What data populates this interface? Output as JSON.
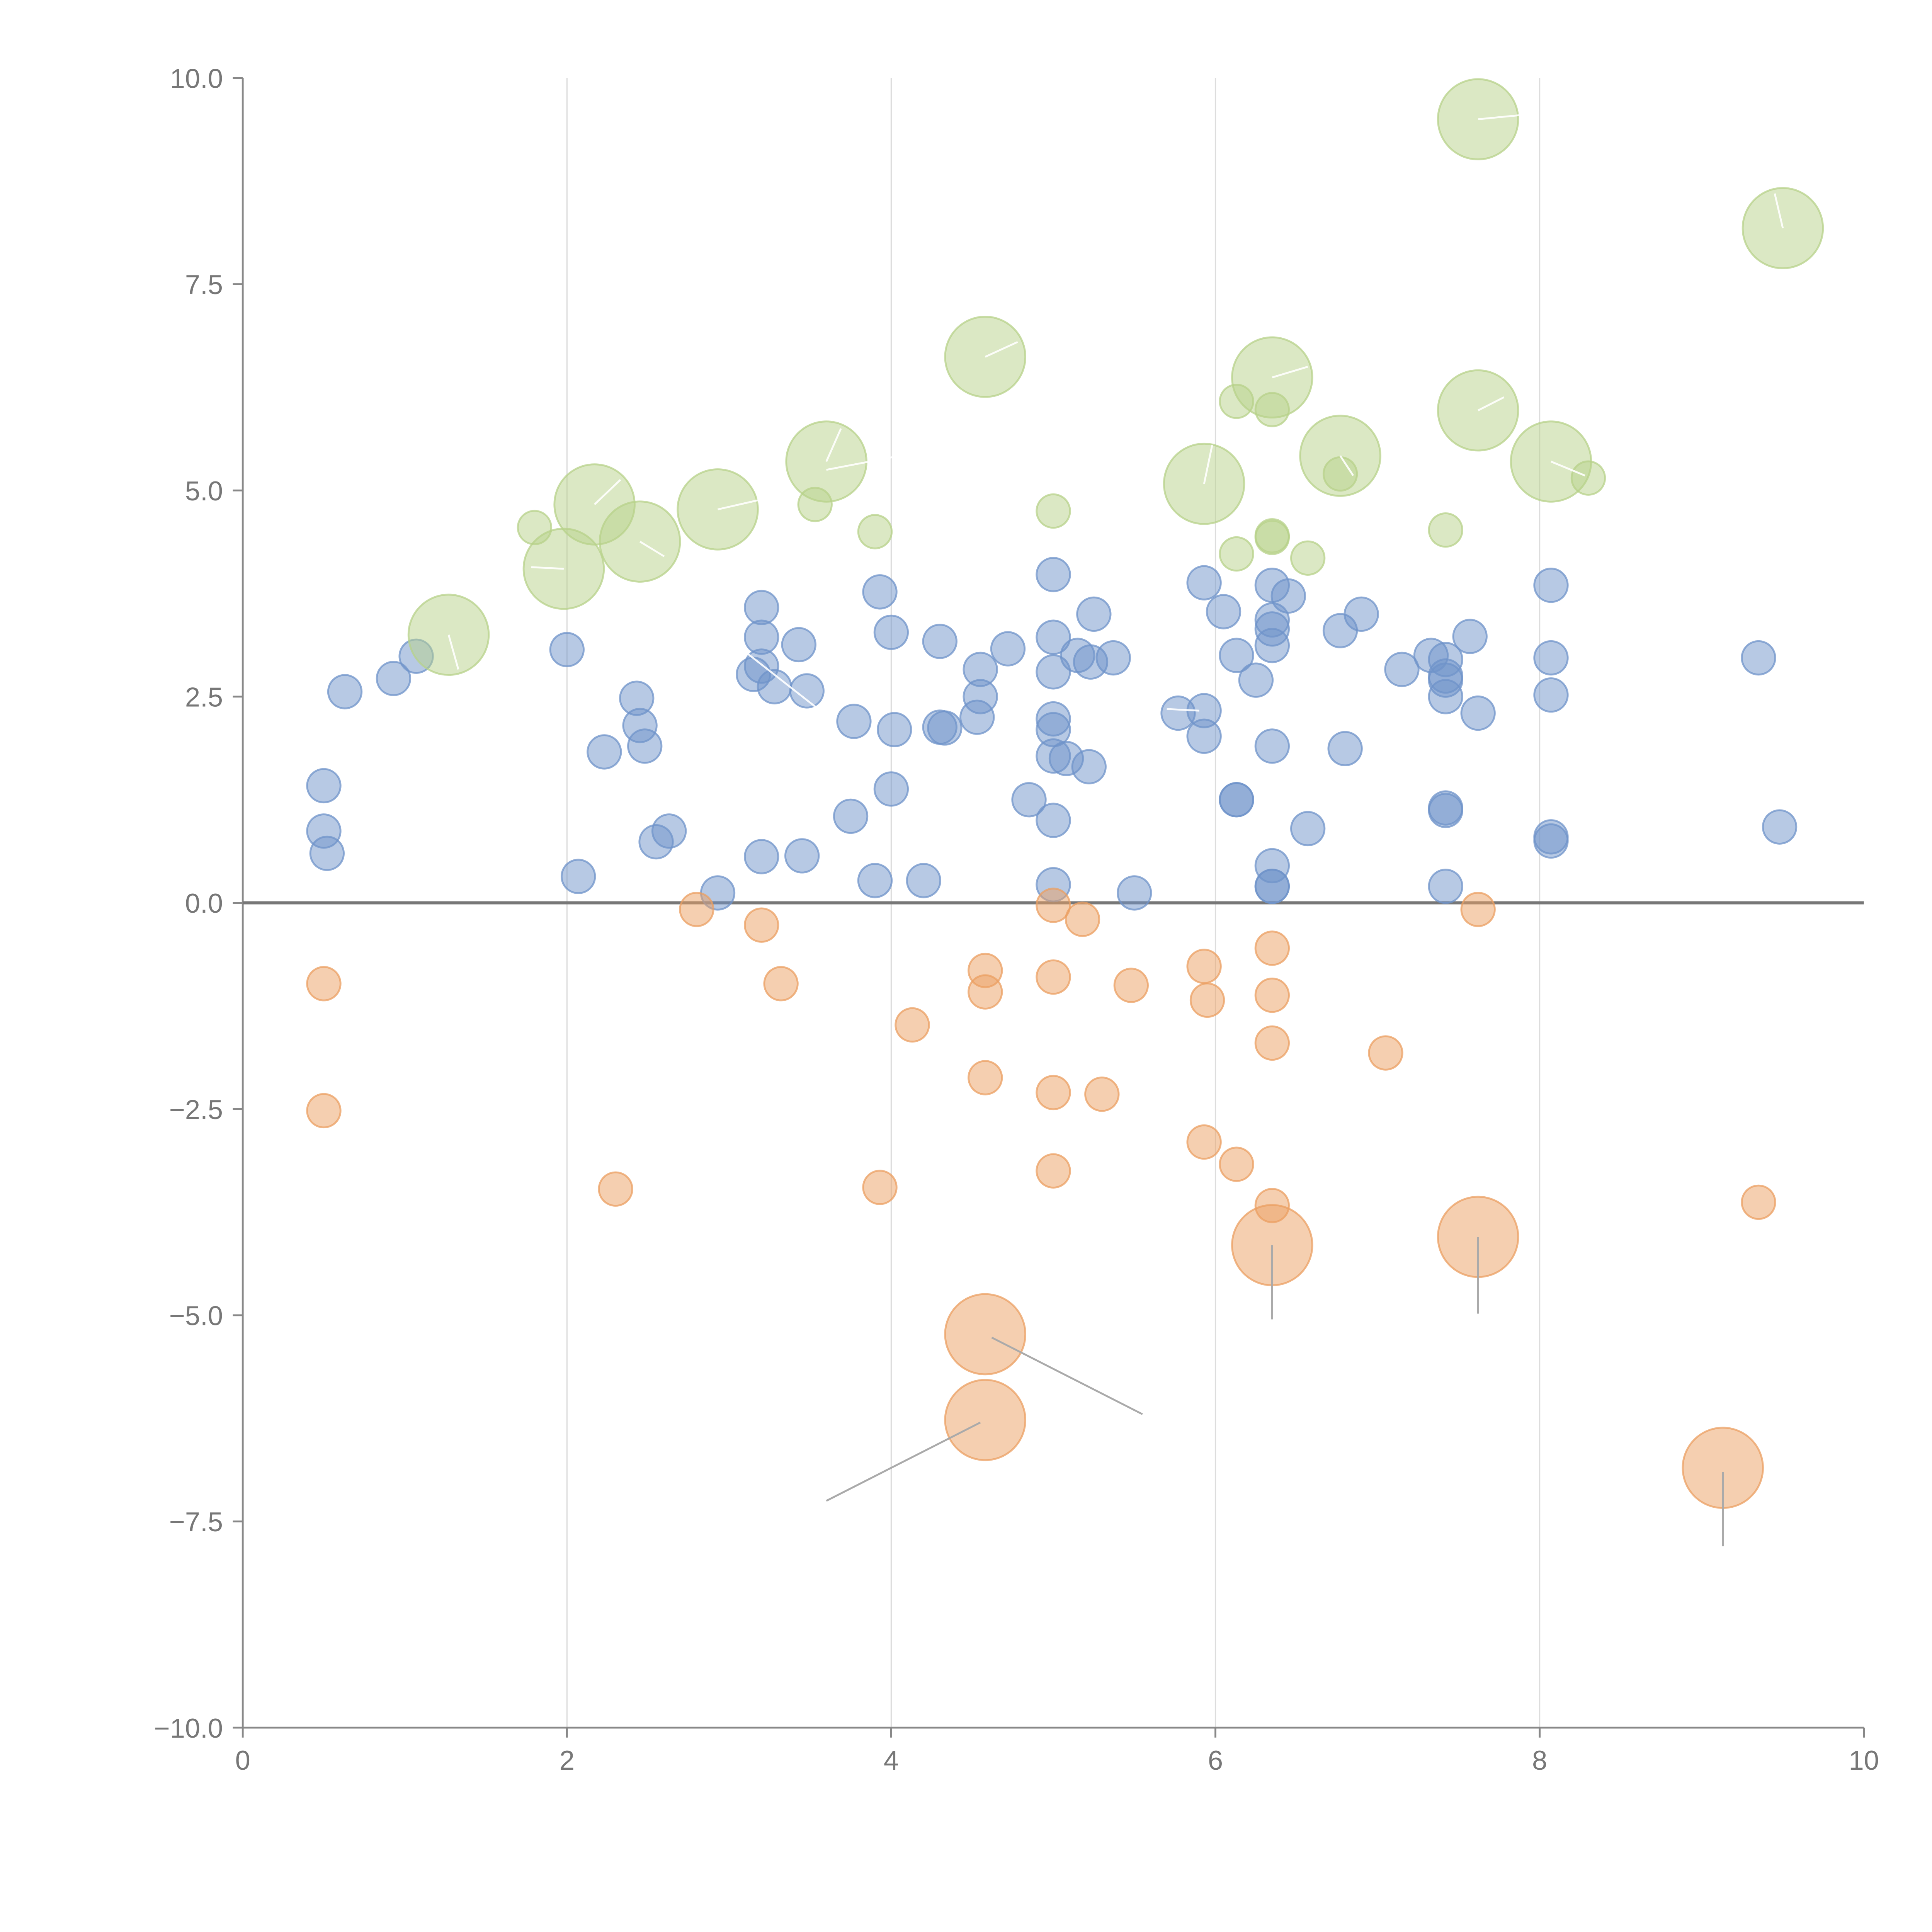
{
  "chart_data": {
    "type": "scatter",
    "title": "",
    "xlabel": "",
    "ylabel": "",
    "xlim": [
      0,
      10
    ],
    "ylim": [
      -10,
      10
    ],
    "x_ticks": [
      0,
      2,
      4,
      6,
      8,
      10
    ],
    "x_tick_labels": [
      "0",
      "2",
      "4",
      "6",
      "8",
      "10"
    ],
    "y_ticks": [
      -10,
      -7.5,
      -5,
      -2.5,
      0,
      2.5,
      5,
      7.5,
      10
    ],
    "y_tick_labels": [
      "−10.0",
      "−7.5",
      "−5.0",
      "−2.5",
      "0.0",
      "2.5",
      "5.0",
      "7.5",
      "10.0"
    ],
    "vertical_gridlines": [
      2,
      4,
      6,
      8
    ],
    "zero_line": 0,
    "series": [
      {
        "name": "blue",
        "color": "#6f93c9",
        "points": [
          {
            "x": 0.5,
            "y": 1.42,
            "s": 1
          },
          {
            "x": 0.5,
            "y": 0.87,
            "s": 1
          },
          {
            "x": 0.52,
            "y": 0.6,
            "s": 1
          },
          {
            "x": 0.63,
            "y": 2.56,
            "s": 1
          },
          {
            "x": 0.93,
            "y": 2.72,
            "s": 1
          },
          {
            "x": 1.07,
            "y": 2.99,
            "s": 1
          },
          {
            "x": 2.0,
            "y": 3.07,
            "s": 1
          },
          {
            "x": 2.07,
            "y": 0.32,
            "s": 1
          },
          {
            "x": 2.23,
            "y": 1.83,
            "s": 1
          },
          {
            "x": 2.43,
            "y": 2.48,
            "s": 1
          },
          {
            "x": 2.45,
            "y": 2.15,
            "s": 1
          },
          {
            "x": 2.48,
            "y": 1.9,
            "s": 1
          },
          {
            "x": 2.55,
            "y": 0.74,
            "s": 1
          },
          {
            "x": 2.63,
            "y": 0.87,
            "s": 1
          },
          {
            "x": 2.93,
            "y": 0.12,
            "s": 1
          },
          {
            "x": 3.15,
            "y": 2.77,
            "s": 1
          },
          {
            "x": 3.2,
            "y": 3.58,
            "s": 1
          },
          {
            "x": 3.2,
            "y": 3.22,
            "s": 1
          },
          {
            "x": 3.2,
            "y": 2.87,
            "s": 1
          },
          {
            "x": 3.2,
            "y": 0.56,
            "s": 1
          },
          {
            "x": 3.28,
            "y": 2.62,
            "s": 1
          },
          {
            "x": 3.43,
            "y": 3.13,
            "s": 1
          },
          {
            "x": 3.45,
            "y": 0.57,
            "s": 1
          },
          {
            "x": 3.48,
            "y": 2.57,
            "s": 1
          },
          {
            "x": 3.75,
            "y": 1.05,
            "s": 1
          },
          {
            "x": 3.77,
            "y": 2.2,
            "s": 1
          },
          {
            "x": 3.9,
            "y": 0.27,
            "s": 1
          },
          {
            "x": 3.93,
            "y": 3.77,
            "s": 1
          },
          {
            "x": 4.0,
            "y": 3.28,
            "s": 1
          },
          {
            "x": 4.0,
            "y": 1.38,
            "s": 1
          },
          {
            "x": 4.02,
            "y": 2.1,
            "s": 1
          },
          {
            "x": 4.2,
            "y": 0.27,
            "s": 1
          },
          {
            "x": 4.3,
            "y": 3.17,
            "s": 1
          },
          {
            "x": 4.3,
            "y": 2.13,
            "s": 1
          },
          {
            "x": 4.33,
            "y": 2.12,
            "s": 1
          },
          {
            "x": 4.55,
            "y": 2.83,
            "s": 1
          },
          {
            "x": 4.55,
            "y": 2.5,
            "s": 1
          },
          {
            "x": 4.53,
            "y": 2.25,
            "s": 1
          },
          {
            "x": 4.72,
            "y": 3.08,
            "s": 1
          },
          {
            "x": 4.85,
            "y": 1.25,
            "s": 1
          },
          {
            "x": 5.0,
            "y": 3.98,
            "s": 1
          },
          {
            "x": 5.0,
            "y": 3.22,
            "s": 1
          },
          {
            "x": 5.0,
            "y": 2.8,
            "s": 1
          },
          {
            "x": 5.0,
            "y": 2.23,
            "s": 1
          },
          {
            "x": 5.0,
            "y": 2.1,
            "s": 1
          },
          {
            "x": 5.0,
            "y": 1.78,
            "s": 1
          },
          {
            "x": 5.0,
            "y": 1.0,
            "s": 1
          },
          {
            "x": 5.0,
            "y": 0.22,
            "s": 1
          },
          {
            "x": 5.08,
            "y": 1.75,
            "s": 1
          },
          {
            "x": 5.15,
            "y": 3.0,
            "s": 1
          },
          {
            "x": 5.22,
            "y": 1.65,
            "s": 1
          },
          {
            "x": 5.23,
            "y": 2.92,
            "s": 1
          },
          {
            "x": 5.25,
            "y": 3.5,
            "s": 1
          },
          {
            "x": 5.37,
            "y": 2.97,
            "s": 1
          },
          {
            "x": 5.5,
            "y": 0.12,
            "s": 1
          },
          {
            "x": 5.77,
            "y": 2.3,
            "s": 1
          },
          {
            "x": 5.93,
            "y": 3.88,
            "s": 1
          },
          {
            "x": 5.93,
            "y": 2.33,
            "s": 1
          },
          {
            "x": 5.93,
            "y": 2.02,
            "s": 1
          },
          {
            "x": 6.05,
            "y": 3.53,
            "s": 1
          },
          {
            "x": 6.13,
            "y": 3.0,
            "s": 1
          },
          {
            "x": 6.13,
            "y": 1.25,
            "s": 1
          },
          {
            "x": 6.13,
            "y": 1.25,
            "s": 1
          },
          {
            "x": 6.25,
            "y": 2.7,
            "s": 1
          },
          {
            "x": 6.35,
            "y": 3.85,
            "s": 1
          },
          {
            "x": 6.35,
            "y": 3.43,
            "s": 1
          },
          {
            "x": 6.35,
            "y": 3.32,
            "s": 1
          },
          {
            "x": 6.35,
            "y": 3.12,
            "s": 1
          },
          {
            "x": 6.35,
            "y": 1.9,
            "s": 1
          },
          {
            "x": 6.35,
            "y": 0.45,
            "s": 1
          },
          {
            "x": 6.35,
            "y": 0.2,
            "s": 1
          },
          {
            "x": 6.35,
            "y": 0.2,
            "s": 1
          },
          {
            "x": 6.45,
            "y": 3.72,
            "s": 1
          },
          {
            "x": 6.57,
            "y": 0.9,
            "s": 1
          },
          {
            "x": 6.77,
            "y": 3.3,
            "s": 1
          },
          {
            "x": 6.8,
            "y": 1.87,
            "s": 1
          },
          {
            "x": 6.9,
            "y": 3.5,
            "s": 1
          },
          {
            "x": 7.15,
            "y": 2.83,
            "s": 1
          },
          {
            "x": 7.33,
            "y": 3.0,
            "s": 1
          },
          {
            "x": 7.42,
            "y": 2.95,
            "s": 1
          },
          {
            "x": 7.42,
            "y": 2.75,
            "s": 1
          },
          {
            "x": 7.42,
            "y": 2.7,
            "s": 1
          },
          {
            "x": 7.42,
            "y": 2.5,
            "s": 1
          },
          {
            "x": 7.42,
            "y": 1.15,
            "s": 1
          },
          {
            "x": 7.42,
            "y": 1.12,
            "s": 1
          },
          {
            "x": 7.42,
            "y": 0.2,
            "s": 1
          },
          {
            "x": 7.57,
            "y": 3.23,
            "s": 1
          },
          {
            "x": 7.62,
            "y": 2.3,
            "s": 1
          },
          {
            "x": 8.07,
            "y": 3.85,
            "s": 1
          },
          {
            "x": 8.07,
            "y": 2.97,
            "s": 1
          },
          {
            "x": 8.07,
            "y": 2.52,
            "s": 1
          },
          {
            "x": 8.07,
            "y": 0.8,
            "s": 1
          },
          {
            "x": 8.07,
            "y": 0.75,
            "s": 1
          },
          {
            "x": 9.35,
            "y": 2.97,
            "s": 1
          },
          {
            "x": 9.48,
            "y": 0.92,
            "s": 1
          }
        ]
      },
      {
        "name": "orange",
        "color": "#eb9f62",
        "points": [
          {
            "x": 0.5,
            "y": -0.98,
            "s": 1
          },
          {
            "x": 0.5,
            "y": -2.52,
            "s": 1
          },
          {
            "x": 2.3,
            "y": -3.47,
            "s": 1
          },
          {
            "x": 2.8,
            "y": -0.08,
            "s": 1
          },
          {
            "x": 3.2,
            "y": -0.27,
            "s": 1
          },
          {
            "x": 3.32,
            "y": -0.98,
            "s": 1
          },
          {
            "x": 3.93,
            "y": -3.45,
            "s": 1
          },
          {
            "x": 4.13,
            "y": -1.48,
            "s": 1
          },
          {
            "x": 4.58,
            "y": -0.82,
            "s": 1
          },
          {
            "x": 4.58,
            "y": -1.08,
            "s": 1
          },
          {
            "x": 4.58,
            "y": -2.12,
            "s": 1
          },
          {
            "x": 5.0,
            "y": -0.03,
            "s": 1
          },
          {
            "x": 5.0,
            "y": -0.9,
            "s": 1
          },
          {
            "x": 5.0,
            "y": -2.3,
            "s": 1
          },
          {
            "x": 5.0,
            "y": -3.25,
            "s": 1
          },
          {
            "x": 5.18,
            "y": -0.2,
            "s": 1
          },
          {
            "x": 5.3,
            "y": -2.32,
            "s": 1
          },
          {
            "x": 5.48,
            "y": -1.0,
            "s": 1
          },
          {
            "x": 5.93,
            "y": -0.77,
            "s": 1
          },
          {
            "x": 5.95,
            "y": -1.18,
            "s": 1
          },
          {
            "x": 5.93,
            "y": -2.9,
            "s": 1
          },
          {
            "x": 6.13,
            "y": -3.17,
            "s": 1
          },
          {
            "x": 6.35,
            "y": -0.55,
            "s": 1
          },
          {
            "x": 6.35,
            "y": -1.12,
            "s": 1
          },
          {
            "x": 6.35,
            "y": -1.7,
            "s": 1
          },
          {
            "x": 6.35,
            "y": -3.67,
            "s": 1
          },
          {
            "x": 7.05,
            "y": -1.82,
            "s": 1
          },
          {
            "x": 7.62,
            "y": -0.08,
            "s": 1
          },
          {
            "x": 9.35,
            "y": -3.63,
            "s": 1
          },
          {
            "x": 6.35,
            "y": -4.15,
            "s": 2.4
          },
          {
            "x": 7.62,
            "y": -4.05,
            "s": 2.4
          },
          {
            "x": 4.58,
            "y": -5.23,
            "s": 2.4
          },
          {
            "x": 4.58,
            "y": -6.27,
            "s": 2.4
          },
          {
            "x": 9.13,
            "y": -6.85,
            "s": 2.4
          }
        ]
      },
      {
        "name": "green",
        "color": "#b7d18a",
        "points": [
          {
            "x": 1.8,
            "y": 4.55,
            "s": 1
          },
          {
            "x": 3.53,
            "y": 4.83,
            "s": 1
          },
          {
            "x": 3.9,
            "y": 4.5,
            "s": 1
          },
          {
            "x": 5.0,
            "y": 4.75,
            "s": 1
          },
          {
            "x": 6.13,
            "y": 6.08,
            "s": 1
          },
          {
            "x": 6.13,
            "y": 4.23,
            "s": 1
          },
          {
            "x": 6.35,
            "y": 5.98,
            "s": 1
          },
          {
            "x": 6.35,
            "y": 4.45,
            "s": 1
          },
          {
            "x": 6.35,
            "y": 4.43,
            "s": 1
          },
          {
            "x": 6.57,
            "y": 4.18,
            "s": 1
          },
          {
            "x": 6.77,
            "y": 5.2,
            "s": 1
          },
          {
            "x": 7.42,
            "y": 4.52,
            "s": 1
          },
          {
            "x": 8.3,
            "y": 5.15,
            "s": 1
          },
          {
            "x": 1.27,
            "y": 3.25,
            "s": 2.4
          },
          {
            "x": 1.98,
            "y": 4.05,
            "s": 2.4
          },
          {
            "x": 2.17,
            "y": 4.83,
            "s": 2.4
          },
          {
            "x": 2.45,
            "y": 4.38,
            "s": 2.4
          },
          {
            "x": 2.93,
            "y": 4.77,
            "s": 2.4
          },
          {
            "x": 3.6,
            "y": 5.35,
            "s": 2.4
          },
          {
            "x": 4.58,
            "y": 6.62,
            "s": 2.4
          },
          {
            "x": 5.93,
            "y": 5.08,
            "s": 2.4
          },
          {
            "x": 6.35,
            "y": 6.37,
            "s": 2.4
          },
          {
            "x": 6.77,
            "y": 5.42,
            "s": 2.4
          },
          {
            "x": 7.62,
            "y": 5.97,
            "s": 2.4
          },
          {
            "x": 8.07,
            "y": 5.35,
            "s": 2.4
          },
          {
            "x": 7.62,
            "y": 9.5,
            "s": 2.4
          },
          {
            "x": 9.5,
            "y": 8.18,
            "s": 2.4
          }
        ]
      }
    ],
    "annotation_leaders": [
      {
        "color": "#ffffff",
        "from": [
          1.27,
          3.25
        ],
        "to": [
          1.33,
          2.83
        ]
      },
      {
        "color": "#ffffff",
        "from": [
          1.98,
          4.05
        ],
        "to": [
          1.78,
          4.07
        ]
      },
      {
        "color": "#ffffff",
        "from": [
          2.17,
          4.83
        ],
        "to": [
          2.33,
          5.13
        ]
      },
      {
        "color": "#ffffff",
        "from": [
          2.45,
          4.38
        ],
        "to": [
          2.6,
          4.2
        ]
      },
      {
        "color": "#ffffff",
        "from": [
          2.93,
          4.77
        ],
        "to": [
          3.4,
          4.98
        ]
      },
      {
        "color": "#ffffff",
        "from": [
          3.6,
          5.35
        ],
        "to": [
          3.69,
          5.75
        ]
      },
      {
        "color": "#ffffff",
        "from": [
          3.6,
          5.25
        ],
        "to": [
          4.08,
          5.43
        ]
      },
      {
        "color": "#ffffff",
        "from": [
          4.58,
          6.62
        ],
        "to": [
          4.78,
          6.8
        ]
      },
      {
        "color": "#ffffff",
        "from": [
          5.93,
          5.08
        ],
        "to": [
          5.98,
          5.55
        ]
      },
      {
        "color": "#ffffff",
        "from": [
          6.35,
          6.37
        ],
        "to": [
          6.57,
          6.5
        ]
      },
      {
        "color": "#ffffff",
        "from": [
          6.77,
          5.42
        ],
        "to": [
          6.85,
          5.18
        ]
      },
      {
        "color": "#ffffff",
        "from": [
          7.62,
          5.97
        ],
        "to": [
          7.78,
          6.13
        ]
      },
      {
        "color": "#ffffff",
        "from": [
          8.07,
          5.35
        ],
        "to": [
          8.28,
          5.18
        ]
      },
      {
        "color": "#ffffff",
        "from": [
          7.62,
          9.5
        ],
        "to": [
          7.88,
          9.55
        ]
      },
      {
        "color": "#ffffff",
        "from": [
          9.5,
          8.18
        ],
        "to": [
          9.45,
          8.6
        ]
      },
      {
        "color": "#ffffff",
        "from": [
          3.05,
          3.12
        ],
        "to": [
          3.55,
          2.35
        ]
      },
      {
        "color": "#ffffff",
        "from": [
          5.7,
          2.35
        ],
        "to": [
          5.9,
          2.33
        ]
      },
      {
        "color": "#aaaaaa",
        "from": [
          6.35,
          -4.15
        ],
        "to": [
          6.35,
          -5.05
        ]
      },
      {
        "color": "#aaaaaa",
        "from": [
          7.62,
          -4.05
        ],
        "to": [
          7.62,
          -4.98
        ]
      },
      {
        "color": "#aaaaaa",
        "from": [
          4.62,
          -5.27
        ],
        "to": [
          5.55,
          -6.2
        ]
      },
      {
        "color": "#aaaaaa",
        "from": [
          4.55,
          -6.3
        ],
        "to": [
          3.6,
          -7.25
        ]
      },
      {
        "color": "#aaaaaa",
        "from": [
          9.13,
          -6.9
        ],
        "to": [
          9.13,
          -7.8
        ]
      }
    ]
  }
}
